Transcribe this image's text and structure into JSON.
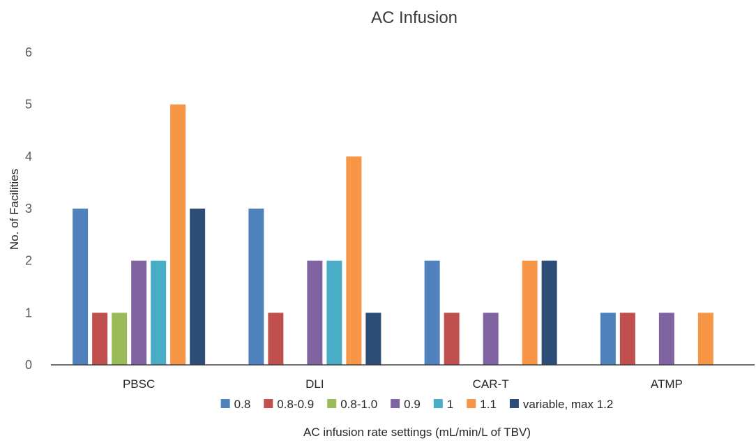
{
  "chart_data": {
    "type": "bar",
    "title": "AC Infusion",
    "xlabel": "AC infusion rate settings (mL/min/L of TBV)",
    "ylabel": "No. of Facilities",
    "ylim": [
      0,
      6
    ],
    "yticks": [
      "0",
      "1",
      "2",
      "3",
      "4",
      "5",
      "6"
    ],
    "grid": false,
    "legend_position": "bottom",
    "categories": [
      "PBSC",
      "DLI",
      "CAR-T",
      "ATMP"
    ],
    "series": [
      {
        "name": "0.8",
        "color": "#4f81bd",
        "values": [
          3,
          3,
          2,
          1
        ]
      },
      {
        "name": "0.8-0.9",
        "color": "#c0504d",
        "values": [
          1,
          1,
          1,
          1
        ]
      },
      {
        "name": "0.8-1.0",
        "color": "#9bbb59",
        "values": [
          1,
          0,
          0,
          0
        ]
      },
      {
        "name": "0.9",
        "color": "#8064a2",
        "values": [
          2,
          2,
          1,
          1
        ]
      },
      {
        "name": "1",
        "color": "#4bacc6",
        "values": [
          2,
          2,
          0,
          0
        ]
      },
      {
        "name": "1.1",
        "color": "#f79646",
        "values": [
          5,
          4,
          2,
          1
        ]
      },
      {
        "name": "variable, max 1.2",
        "color": "#2c4d75",
        "values": [
          3,
          1,
          2,
          0
        ]
      }
    ]
  }
}
